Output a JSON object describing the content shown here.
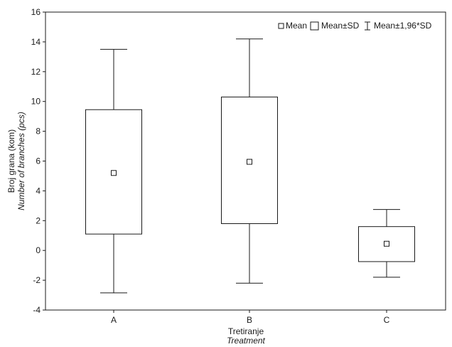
{
  "chart_data": {
    "type": "box",
    "categories": [
      "A",
      "B",
      "C"
    ],
    "series": [
      {
        "values": [
          {
            "mean": 5.2,
            "sd_low": 1.1,
            "sd_high": 9.45,
            "ci_low": -2.85,
            "ci_high": 13.5
          },
          {
            "mean": 5.95,
            "sd_low": 1.8,
            "sd_high": 10.3,
            "ci_low": -2.2,
            "ci_high": 14.2
          },
          {
            "mean": 0.45,
            "sd_low": -0.75,
            "sd_high": 1.6,
            "ci_low": -1.8,
            "ci_high": 2.75
          }
        ]
      }
    ],
    "ylim": [
      -4,
      16
    ],
    "yticks": [
      -4,
      -2,
      0,
      2,
      4,
      6,
      8,
      10,
      12,
      14,
      16
    ],
    "ylabel": "Broj grana (kom)",
    "ylabel_sub": "Number of branches (pcs)",
    "xlabel": "Tretiranje",
    "xlabel_sub": "Treatment",
    "legend": {
      "position": "top-right",
      "entries": [
        "Mean",
        "Mean±SD",
        "Mean±1,96*SD"
      ]
    },
    "grid": false
  }
}
